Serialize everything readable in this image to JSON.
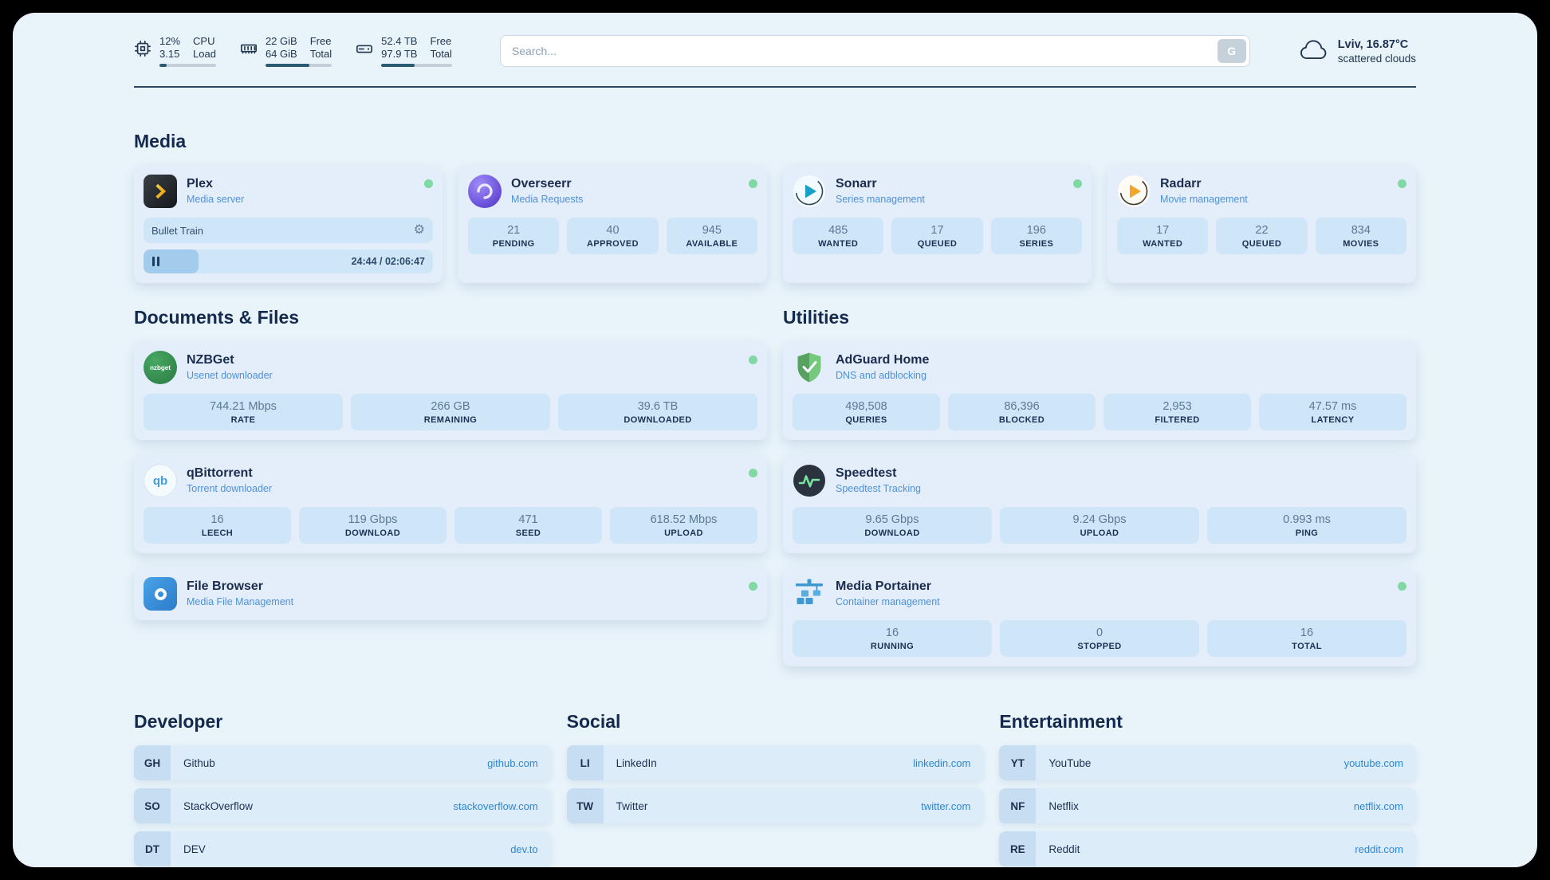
{
  "header": {
    "cpu": {
      "value1": "12%",
      "value2": "3.15",
      "label1": "CPU",
      "label2": "Load",
      "progress": 12
    },
    "ram": {
      "value1": "22 GiB",
      "value2": "64 GiB",
      "label1": "Free",
      "label2": "Total",
      "progress": 66
    },
    "disk": {
      "value1": "52.4 TB",
      "value2": "97.9 TB",
      "label1": "Free",
      "label2": "Total",
      "progress": 47
    },
    "search": {
      "placeholder": "Search...",
      "button_label": "G"
    },
    "weather": {
      "location": "Lviv, 16.87°C",
      "condition": "scattered clouds"
    }
  },
  "sections": {
    "media": {
      "title": "Media",
      "plex": {
        "name": "Plex",
        "subtitle": "Media server",
        "now_playing": "Bullet Train",
        "time": "24:44 / 02:06:47",
        "progress": 19
      },
      "overseerr": {
        "name": "Overseerr",
        "subtitle": "Media Requests",
        "stats": [
          {
            "value": "21",
            "label": "PENDING"
          },
          {
            "value": "40",
            "label": "APPROVED"
          },
          {
            "value": "945",
            "label": "AVAILABLE"
          }
        ]
      },
      "sonarr": {
        "name": "Sonarr",
        "subtitle": "Series management",
        "stats": [
          {
            "value": "485",
            "label": "WANTED"
          },
          {
            "value": "17",
            "label": "QUEUED"
          },
          {
            "value": "196",
            "label": "SERIES"
          }
        ]
      },
      "radarr": {
        "name": "Radarr",
        "subtitle": "Movie management",
        "stats": [
          {
            "value": "17",
            "label": "WANTED"
          },
          {
            "value": "22",
            "label": "QUEUED"
          },
          {
            "value": "834",
            "label": "MOVIES"
          }
        ]
      }
    },
    "documents": {
      "title": "Documents & Files",
      "nzbget": {
        "name": "NZBGet",
        "subtitle": "Usenet downloader",
        "icon_text": "nzbget",
        "stats": [
          {
            "value": "744.21 Mbps",
            "label": "RATE"
          },
          {
            "value": "266 GB",
            "label": "REMAINING"
          },
          {
            "value": "39.6 TB",
            "label": "DOWNLOADED"
          }
        ]
      },
      "qbittorrent": {
        "name": "qBittorrent",
        "subtitle": "Torrent downloader",
        "icon_text": "qb",
        "stats": [
          {
            "value": "16",
            "label": "LEECH"
          },
          {
            "value": "119 Gbps",
            "label": "DOWNLOAD"
          },
          {
            "value": "471",
            "label": "SEED"
          },
          {
            "value": "618.52 Mbps",
            "label": "UPLOAD"
          }
        ]
      },
      "filebrowser": {
        "name": "File Browser",
        "subtitle": "Media File Management"
      }
    },
    "utilities": {
      "title": "Utilities",
      "adguard": {
        "name": "AdGuard Home",
        "subtitle": "DNS and adblocking",
        "stats": [
          {
            "value": "498,508",
            "label": "QUERIES"
          },
          {
            "value": "86,396",
            "label": "BLOCKED"
          },
          {
            "value": "2,953",
            "label": "FILTERED"
          },
          {
            "value": "47.57 ms",
            "label": "LATENCY"
          }
        ]
      },
      "speedtest": {
        "name": "Speedtest",
        "subtitle": "Speedtest Tracking",
        "stats": [
          {
            "value": "9.65 Gbps",
            "label": "DOWNLOAD"
          },
          {
            "value": "9.24 Gbps",
            "label": "UPLOAD"
          },
          {
            "value": "0.993 ms",
            "label": "PING"
          }
        ]
      },
      "portainer": {
        "name": "Media Portainer",
        "subtitle": "Container management",
        "stats": [
          {
            "value": "16",
            "label": "RUNNING"
          },
          {
            "value": "0",
            "label": "STOPPED"
          },
          {
            "value": "16",
            "label": "TOTAL"
          }
        ]
      }
    },
    "bookmarks": {
      "developer": {
        "title": "Developer",
        "items": [
          {
            "abbr": "GH",
            "name": "Github",
            "link": "github.com"
          },
          {
            "abbr": "SO",
            "name": "StackOverflow",
            "link": "stackoverflow.com"
          },
          {
            "abbr": "DT",
            "name": "DEV",
            "link": "dev.to"
          }
        ]
      },
      "social": {
        "title": "Social",
        "items": [
          {
            "abbr": "LI",
            "name": "LinkedIn",
            "link": "linkedin.com"
          },
          {
            "abbr": "TW",
            "name": "Twitter",
            "link": "twitter.com"
          }
        ]
      },
      "entertainment": {
        "title": "Entertainment",
        "items": [
          {
            "abbr": "YT",
            "name": "YouTube",
            "link": "youtube.com"
          },
          {
            "abbr": "NF",
            "name": "Netflix",
            "link": "netflix.com"
          },
          {
            "abbr": "RE",
            "name": "Reddit",
            "link": "reddit.com"
          }
        ]
      }
    }
  },
  "colors": {
    "status_online": "#80d9a3",
    "link": "#2e86d5",
    "accent_sub": "#4e91d9",
    "panel": "#e9f3fa"
  },
  "icons": {
    "cpu": "cpu-chip-icon",
    "ram": "memory-icon",
    "disk": "storage-drive-icon",
    "weather": "cloud-icon",
    "settings": "gear-icon",
    "pause": "pause-icon"
  }
}
